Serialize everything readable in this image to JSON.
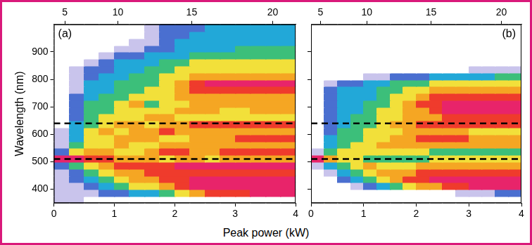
{
  "chart_data": [
    {
      "type": "heatmap",
      "title": "(a)",
      "xlabel": "Peak power (kW)",
      "ylabel": "Wavelength (nm)",
      "xlim": [
        0,
        4
      ],
      "xticks": [
        0,
        1,
        2,
        3,
        4
      ],
      "x2lim": [
        0,
        4
      ],
      "x2ticks": [
        {
          "value": 0.18,
          "label": "5"
        },
        {
          "value": 1.06,
          "label": "10"
        },
        {
          "value": 2.28,
          "label": "15"
        },
        {
          "value": 3.62,
          "label": "20"
        }
      ],
      "ylim": [
        350,
        1000
      ],
      "yticks": [
        400,
        500,
        600,
        700,
        800,
        900
      ],
      "grid": false,
      "hlines": {
        "values": [
          640,
          510
        ],
        "line_style": "dashed",
        "color": "#000000"
      },
      "colors": [
        "#ffffff",
        "#c9c4ec",
        "#4a6fd0",
        "#22a8d8",
        "#3cbf7a",
        "#f2e03a",
        "#f5a623",
        "#ef3b2c",
        "#e8246a"
      ],
      "x_edges": [
        0,
        0.25,
        0.5,
        0.75,
        1,
        1.25,
        1.5,
        1.75,
        2,
        2.25,
        2.5,
        2.75,
        3,
        3.25,
        3.5,
        3.75,
        4
      ],
      "y_edges": [
        350,
        375,
        400,
        425,
        450,
        475,
        500,
        525,
        550,
        575,
        600,
        625,
        650,
        675,
        700,
        725,
        750,
        775,
        800,
        825,
        850,
        875,
        900,
        925,
        950,
        975,
        1000
      ],
      "cells": [
        [
          1,
          1,
          0,
          0,
          0,
          0,
          0,
          0,
          0,
          0,
          0,
          0,
          0,
          0,
          0,
          0
        ],
        [
          1,
          1,
          1,
          2,
          2,
          3,
          3,
          4,
          5,
          6,
          7,
          7,
          7,
          8,
          8,
          8
        ],
        [
          1,
          1,
          2,
          3,
          4,
          5,
          5,
          6,
          7,
          8,
          8,
          8,
          8,
          8,
          8,
          8
        ],
        [
          1,
          2,
          3,
          4,
          5,
          6,
          6,
          7,
          7,
          8,
          8,
          8,
          8,
          8,
          8,
          8
        ],
        [
          1,
          2,
          4,
          5,
          6,
          6,
          7,
          7,
          7,
          7,
          7,
          7,
          7,
          7,
          7,
          7
        ],
        [
          2,
          4,
          5,
          6,
          7,
          7,
          7,
          7,
          8,
          8,
          8,
          8,
          8,
          8,
          8,
          8
        ],
        [
          8,
          8,
          7,
          7,
          6,
          6,
          6,
          5,
          6,
          6,
          5,
          6,
          6,
          6,
          6,
          6
        ],
        [
          2,
          5,
          6,
          6,
          5,
          5,
          6,
          7,
          7,
          6,
          6,
          7,
          7,
          7,
          7,
          7
        ],
        [
          1,
          4,
          5,
          5,
          6,
          5,
          5,
          6,
          6,
          6,
          6,
          6,
          6,
          6,
          6,
          6
        ],
        [
          1,
          3,
          5,
          5,
          6,
          6,
          6,
          5,
          5,
          6,
          6,
          6,
          7,
          7,
          7,
          7
        ],
        [
          1,
          3,
          5,
          6,
          5,
          6,
          6,
          7,
          6,
          6,
          6,
          6,
          6,
          6,
          6,
          6
        ],
        [
          0,
          3,
          4,
          5,
          6,
          6,
          5,
          6,
          6,
          7,
          7,
          7,
          7,
          7,
          7,
          7
        ],
        [
          0,
          2,
          4,
          5,
          5,
          5,
          6,
          6,
          5,
          5,
          5,
          5,
          5,
          5,
          5,
          5
        ],
        [
          0,
          2,
          4,
          4,
          5,
          5,
          5,
          5,
          6,
          6,
          6,
          5,
          5,
          6,
          6,
          6
        ],
        [
          0,
          2,
          4,
          4,
          5,
          6,
          4,
          5,
          5,
          6,
          6,
          6,
          6,
          6,
          6,
          6
        ],
        [
          0,
          2,
          3,
          4,
          4,
          5,
          5,
          5,
          6,
          6,
          6,
          6,
          6,
          6,
          6,
          6
        ],
        [
          0,
          1,
          3,
          3,
          4,
          4,
          5,
          5,
          6,
          7,
          7,
          7,
          7,
          7,
          7,
          7
        ],
        [
          0,
          1,
          3,
          3,
          4,
          4,
          4,
          5,
          6,
          7,
          8,
          8,
          8,
          8,
          8,
          8
        ],
        [
          0,
          1,
          2,
          3,
          3,
          4,
          4,
          5,
          5,
          6,
          6,
          6,
          6,
          6,
          6,
          6
        ],
        [
          0,
          1,
          2,
          2,
          3,
          3,
          4,
          4,
          5,
          5,
          5,
          5,
          5,
          5,
          5,
          5
        ],
        [
          0,
          0,
          1,
          2,
          3,
          3,
          3,
          4,
          4,
          5,
          5,
          5,
          5,
          5,
          5,
          5
        ],
        [
          0,
          0,
          0,
          1,
          2,
          2,
          3,
          3,
          3,
          4,
          4,
          4,
          4,
          4,
          4,
          4
        ],
        [
          0,
          0,
          0,
          0,
          1,
          1,
          2,
          2,
          3,
          3,
          3,
          3,
          4,
          4,
          4,
          4
        ],
        [
          0,
          0,
          0,
          0,
          0,
          1,
          1,
          2,
          3,
          3,
          3,
          3,
          3,
          3,
          3,
          3
        ],
        [
          0,
          0,
          0,
          0,
          0,
          0,
          1,
          2,
          2,
          3,
          3,
          3,
          3,
          3,
          3,
          3
        ],
        [
          0,
          0,
          0,
          0,
          0,
          0,
          1,
          2,
          2,
          2,
          3,
          3,
          3,
          3,
          3,
          3
        ]
      ]
    },
    {
      "type": "heatmap",
      "title": "(b)",
      "tick_labels": "x",
      "xlim": [
        0,
        4
      ],
      "xticks": [
        0,
        1,
        2,
        3,
        4
      ],
      "x2lim": [
        0,
        4
      ],
      "x2ticks": [
        {
          "value": 0.18,
          "label": "5"
        },
        {
          "value": 1.06,
          "label": "10"
        },
        {
          "value": 2.28,
          "label": "15"
        },
        {
          "value": 3.62,
          "label": "20"
        }
      ],
      "ylim": [
        350,
        1000
      ],
      "yticks": [
        400,
        500,
        600,
        700,
        800,
        900
      ],
      "grid": false,
      "hlines": {
        "values": [
          640,
          510
        ],
        "line_style": "dashed",
        "color": "#000000"
      },
      "colors": [
        "#ffffff",
        "#c9c4ec",
        "#4a6fd0",
        "#22a8d8",
        "#3cbf7a",
        "#f2e03a",
        "#f5a623",
        "#ef3b2c",
        "#e8246a"
      ],
      "x_edges": [
        0,
        0.25,
        0.5,
        0.75,
        1,
        1.25,
        1.5,
        1.75,
        2,
        2.25,
        2.5,
        2.75,
        3,
        3.25,
        3.5,
        3.75,
        4
      ],
      "y_edges": [
        350,
        375,
        400,
        425,
        450,
        475,
        500,
        525,
        550,
        575,
        600,
        625,
        650,
        675,
        700,
        725,
        750,
        775,
        800,
        825,
        850,
        875,
        900,
        925,
        950,
        975,
        1000
      ],
      "cells": [
        [
          0,
          0,
          0,
          0,
          0,
          0,
          0,
          0,
          0,
          0,
          0,
          0,
          0,
          0,
          0,
          0
        ],
        [
          0,
          0,
          0,
          0,
          0,
          0,
          0,
          0,
          0,
          0,
          0,
          1,
          1,
          1,
          2,
          2
        ],
        [
          0,
          0,
          0,
          1,
          2,
          3,
          4,
          5,
          6,
          6,
          7,
          7,
          8,
          8,
          8,
          8
        ],
        [
          0,
          0,
          2,
          3,
          4,
          5,
          6,
          7,
          7,
          8,
          8,
          8,
          8,
          8,
          8,
          8
        ],
        [
          0,
          1,
          3,
          4,
          5,
          6,
          6,
          6,
          7,
          7,
          7,
          7,
          7,
          7,
          7,
          7
        ],
        [
          1,
          3,
          4,
          5,
          6,
          5,
          5,
          5,
          6,
          6,
          6,
          6,
          6,
          6,
          6,
          6
        ],
        [
          8,
          6,
          5,
          5,
          4,
          4,
          4,
          4,
          4,
          5,
          5,
          5,
          5,
          5,
          5,
          5
        ],
        [
          1,
          4,
          5,
          5,
          5,
          5,
          5,
          5,
          5,
          4,
          4,
          4,
          4,
          4,
          4,
          4
        ],
        [
          0,
          3,
          4,
          5,
          5,
          6,
          6,
          6,
          6,
          6,
          6,
          6,
          6,
          6,
          6,
          6
        ],
        [
          0,
          3,
          4,
          4,
          5,
          5,
          6,
          6,
          7,
          7,
          7,
          7,
          6,
          6,
          6,
          6
        ],
        [
          0,
          2,
          4,
          4,
          5,
          5,
          5,
          6,
          6,
          6,
          6,
          6,
          5,
          5,
          5,
          5
        ],
        [
          0,
          2,
          3,
          4,
          4,
          5,
          6,
          6,
          7,
          7,
          7,
          7,
          7,
          7,
          7,
          7
        ],
        [
          0,
          2,
          3,
          4,
          4,
          5,
          5,
          6,
          6,
          6,
          7,
          7,
          7,
          7,
          7,
          7
        ],
        [
          0,
          2,
          3,
          3,
          4,
          5,
          5,
          6,
          6,
          7,
          8,
          8,
          8,
          8,
          8,
          8
        ],
        [
          0,
          2,
          3,
          3,
          4,
          4,
          5,
          6,
          7,
          7,
          8,
          8,
          8,
          8,
          8,
          8
        ],
        [
          0,
          2,
          3,
          3,
          3,
          4,
          5,
          5,
          6,
          7,
          7,
          7,
          7,
          7,
          7,
          7
        ],
        [
          0,
          2,
          3,
          3,
          3,
          4,
          4,
          5,
          5,
          6,
          6,
          6,
          6,
          6,
          6,
          6
        ],
        [
          0,
          1,
          2,
          2,
          3,
          3,
          4,
          4,
          4,
          5,
          5,
          5,
          5,
          5,
          5,
          5
        ],
        [
          0,
          0,
          0,
          0,
          1,
          1,
          2,
          2,
          2,
          3,
          3,
          3,
          3,
          3,
          4,
          4
        ],
        [
          0,
          0,
          0,
          0,
          0,
          0,
          0,
          0,
          0,
          0,
          0,
          0,
          1,
          1,
          1,
          1
        ],
        [
          0,
          0,
          0,
          0,
          0,
          0,
          0,
          0,
          0,
          0,
          0,
          0,
          0,
          0,
          0,
          0
        ],
        [
          0,
          0,
          0,
          0,
          0,
          0,
          0,
          0,
          0,
          0,
          0,
          0,
          0,
          0,
          0,
          0
        ],
        [
          0,
          0,
          0,
          0,
          0,
          0,
          0,
          0,
          0,
          0,
          0,
          0,
          0,
          0,
          0,
          0
        ],
        [
          0,
          0,
          0,
          0,
          0,
          0,
          0,
          0,
          0,
          0,
          0,
          0,
          0,
          0,
          0,
          0
        ],
        [
          0,
          0,
          0,
          0,
          0,
          0,
          0,
          0,
          0,
          0,
          0,
          0,
          0,
          0,
          0,
          0
        ],
        [
          0,
          0,
          0,
          0,
          0,
          0,
          0,
          0,
          0,
          0,
          0,
          0,
          0,
          0,
          0,
          0
        ]
      ]
    }
  ]
}
